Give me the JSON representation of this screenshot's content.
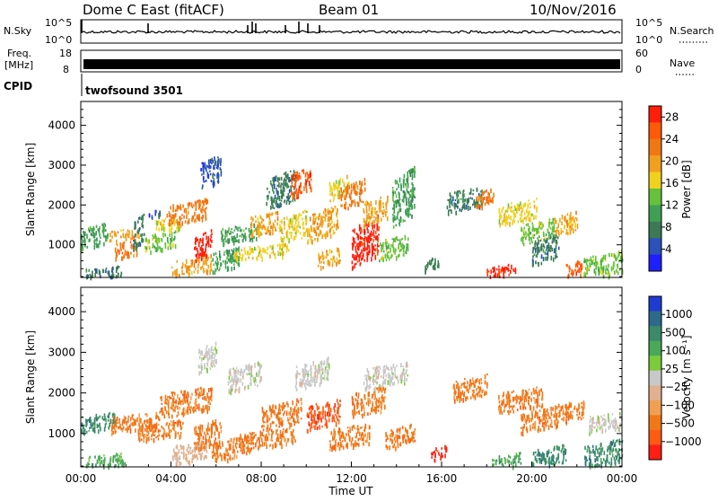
{
  "header": {
    "station": "Dome C East (fitACF)",
    "beam": "Beam 01",
    "date": "10/Nov/2016"
  },
  "strips": {
    "nsky_label": "N.Sky",
    "nsky_ticks": [
      "10^5",
      "10^0"
    ],
    "nsearch_label": "N.Search",
    "nsearch_ticks": [
      "10^5",
      "10^0"
    ],
    "freq_label_1": "Freq.",
    "freq_label_2": "[MHz]",
    "freq_ticks": [
      "18",
      "8"
    ],
    "nave_label": "Nave",
    "nave_ticks": [
      "60",
      "0"
    ],
    "cpid_label": "CPID",
    "cpid_value": "twofsound 3501"
  },
  "colors": {
    "power": [
      "#1e1eff",
      "#2a52b8",
      "#3b7a55",
      "#3fa055",
      "#66c23a",
      "#f0d21e",
      "#f0a01e",
      "#f07814",
      "#ff5a0a",
      "#ff1e0a"
    ],
    "velocity": [
      "#1e3cd0",
      "#2d6a8a",
      "#3b8a6a",
      "#4aa858",
      "#7acc3a",
      "#c8c8c8",
      "#e0b090",
      "#f0a050",
      "#f07818",
      "#ff5a14",
      "#ff1e14"
    ]
  },
  "chart_data": [
    {
      "type": "heatmap",
      "title": "Power",
      "ylabel": "Slant Range [km]",
      "xlabel": "",
      "x_ticks": [],
      "y_ticks": [
        "1000",
        "2000",
        "3000",
        "4000"
      ],
      "ylim": [
        180,
        4600
      ],
      "x_range_hours": [
        0,
        24
      ],
      "colorbar_label": "Power [dB]",
      "colorbar_ticks": [
        "4",
        "8",
        "12",
        "16",
        "20",
        "24",
        "28"
      ],
      "colorbar_range": [
        0,
        30
      ],
      "grid": false,
      "blobs": [
        {
          "h": [
            0.0,
            1.2
          ],
          "r": [
            1000,
            1500
          ],
          "c": 3
        },
        {
          "h": [
            0.2,
            1.8
          ],
          "r": [
            180,
            450
          ],
          "c": 2
        },
        {
          "h": [
            1.2,
            2.6
          ],
          "r": [
            1150,
            1400
          ],
          "c": 6
        },
        {
          "h": [
            1.5,
            2.5
          ],
          "r": [
            700,
            1100
          ],
          "c": 7
        },
        {
          "h": [
            2.3,
            2.8
          ],
          "r": [
            1000,
            1700
          ],
          "c": 2
        },
        {
          "h": [
            2.8,
            4.2
          ],
          "r": [
            900,
            1300
          ],
          "c": 4
        },
        {
          "h": [
            3.0,
            3.5
          ],
          "r": [
            1700,
            1900
          ],
          "c": 1
        },
        {
          "h": [
            3.3,
            4.5
          ],
          "r": [
            1400,
            1700
          ],
          "c": 5
        },
        {
          "h": [
            3.8,
            5.6
          ],
          "r": [
            1600,
            2100
          ],
          "c": 7
        },
        {
          "h": [
            4.0,
            5.8
          ],
          "r": [
            300,
            700
          ],
          "c": 6
        },
        {
          "h": [
            5.0,
            5.8
          ],
          "r": [
            700,
            1300
          ],
          "c": 9
        },
        {
          "h": [
            5.3,
            6.2
          ],
          "r": [
            2500,
            3200
          ],
          "c": 1
        },
        {
          "h": [
            5.8,
            7.0
          ],
          "r": [
            400,
            900
          ],
          "c": 3
        },
        {
          "h": [
            6.2,
            7.8
          ],
          "r": [
            1100,
            1500
          ],
          "c": 3
        },
        {
          "h": [
            6.8,
            9.2
          ],
          "r": [
            700,
            1000
          ],
          "c": 5
        },
        {
          "h": [
            7.5,
            8.8
          ],
          "r": [
            1300,
            1800
          ],
          "c": 6
        },
        {
          "h": [
            8.2,
            9.5
          ],
          "r": [
            2000,
            2800
          ],
          "c": 2
        },
        {
          "h": [
            8.8,
            10.0
          ],
          "r": [
            1100,
            1800
          ],
          "c": 5
        },
        {
          "h": [
            9.3,
            10.2
          ],
          "r": [
            2300,
            2900
          ],
          "c": 8
        },
        {
          "h": [
            10.0,
            11.4
          ],
          "r": [
            1200,
            1900
          ],
          "c": 6
        },
        {
          "h": [
            10.5,
            11.5
          ],
          "r": [
            500,
            900
          ],
          "c": 6
        },
        {
          "h": [
            11.0,
            11.9
          ],
          "r": [
            2200,
            2700
          ],
          "c": 5
        },
        {
          "h": [
            11.5,
            12.6
          ],
          "r": [
            2000,
            2600
          ],
          "c": 7
        },
        {
          "h": [
            12.0,
            13.2
          ],
          "r": [
            600,
            1600
          ],
          "c": 9
        },
        {
          "h": [
            12.5,
            13.6
          ],
          "r": [
            1600,
            2200
          ],
          "c": 6
        },
        {
          "h": [
            13.2,
            14.5
          ],
          "r": [
            700,
            1200
          ],
          "c": 4
        },
        {
          "h": [
            13.8,
            14.8
          ],
          "r": [
            1600,
            2800
          ],
          "c": 3
        },
        {
          "h": [
            15.2,
            15.9
          ],
          "r": [
            400,
            700
          ],
          "c": 2
        },
        {
          "h": [
            16.2,
            17.8
          ],
          "r": [
            1900,
            2400
          ],
          "c": 2
        },
        {
          "h": [
            17.5,
            18.3
          ],
          "r": [
            2000,
            2400
          ],
          "c": 7
        },
        {
          "h": [
            18.0,
            19.3
          ],
          "r": [
            180,
            500
          ],
          "c": 9
        },
        {
          "h": [
            18.5,
            20.2
          ],
          "r": [
            1600,
            2100
          ],
          "c": 5
        },
        {
          "h": [
            19.5,
            21.0
          ],
          "r": [
            1100,
            1600
          ],
          "c": 4
        },
        {
          "h": [
            20.0,
            21.2
          ],
          "r": [
            600,
            1200
          ],
          "c": 2
        },
        {
          "h": [
            21.0,
            22.0
          ],
          "r": [
            1300,
            1800
          ],
          "c": 6
        },
        {
          "h": [
            21.5,
            22.2
          ],
          "r": [
            200,
            600
          ],
          "c": 8
        },
        {
          "h": [
            22.3,
            24.0
          ],
          "r": [
            200,
            800
          ],
          "c": 4
        }
      ]
    },
    {
      "type": "heatmap",
      "title": "Velocity",
      "ylabel": "Slant Range [km]",
      "xlabel": "Time UT",
      "x_ticks": [
        "00:00",
        "04:00",
        "08:00",
        "12:00",
        "16:00",
        "20:00",
        "00:00"
      ],
      "y_ticks": [
        "1000",
        "2000",
        "3000",
        "4000"
      ],
      "ylim": [
        180,
        4600
      ],
      "x_range_hours": [
        0,
        24
      ],
      "colorbar_label": "Velocity [m s⁻¹]",
      "colorbar_ticks": [
        "1000",
        "500",
        "100",
        "25",
        "−25",
        "−100",
        "−500",
        "−1000"
      ],
      "colorbar_range": [
        -1200,
        1200
      ],
      "grid": false,
      "blobs": [
        {
          "h": [
            0.0,
            1.5
          ],
          "r": [
            1100,
            1500
          ],
          "c": 2
        },
        {
          "h": [
            0.2,
            2.0
          ],
          "r": [
            180,
            500
          ],
          "c": 3
        },
        {
          "h": [
            1.3,
            3.5
          ],
          "r": [
            1100,
            1500
          ],
          "c": 8
        },
        {
          "h": [
            2.5,
            4.5
          ],
          "r": [
            900,
            1300
          ],
          "c": 8
        },
        {
          "h": [
            3.5,
            5.8
          ],
          "r": [
            1500,
            2100
          ],
          "c": 8
        },
        {
          "h": [
            4.0,
            5.6
          ],
          "r": [
            300,
            800
          ],
          "c": 6
        },
        {
          "h": [
            5.0,
            6.2
          ],
          "r": [
            700,
            1300
          ],
          "c": 8
        },
        {
          "h": [
            5.2,
            6.0
          ],
          "r": [
            2600,
            3200
          ],
          "c": 5
        },
        {
          "h": [
            5.8,
            7.5
          ],
          "r": [
            400,
            900
          ],
          "c": 8
        },
        {
          "h": [
            6.5,
            8.0
          ],
          "r": [
            2100,
            2700
          ],
          "c": 5
        },
        {
          "h": [
            7.0,
            9.5
          ],
          "r": [
            700,
            1100
          ],
          "c": 8
        },
        {
          "h": [
            8.0,
            9.8
          ],
          "r": [
            1200,
            1800
          ],
          "c": 8
        },
        {
          "h": [
            9.5,
            11.0
          ],
          "r": [
            2200,
            2800
          ],
          "c": 5
        },
        {
          "h": [
            10.0,
            11.5
          ],
          "r": [
            1200,
            1800
          ],
          "c": 9
        },
        {
          "h": [
            11.0,
            12.8
          ],
          "r": [
            700,
            1200
          ],
          "c": 8
        },
        {
          "h": [
            12.0,
            13.5
          ],
          "r": [
            1500,
            2100
          ],
          "c": 8
        },
        {
          "h": [
            12.5,
            14.5
          ],
          "r": [
            2200,
            2700
          ],
          "c": 5
        },
        {
          "h": [
            13.5,
            14.8
          ],
          "r": [
            700,
            1200
          ],
          "c": 8
        },
        {
          "h": [
            15.5,
            16.2
          ],
          "r": [
            400,
            700
          ],
          "c": 10
        },
        {
          "h": [
            16.5,
            18.0
          ],
          "r": [
            1900,
            2400
          ],
          "c": 8
        },
        {
          "h": [
            18.2,
            19.5
          ],
          "r": [
            200,
            500
          ],
          "c": 3
        },
        {
          "h": [
            18.5,
            20.5
          ],
          "r": [
            1600,
            2100
          ],
          "c": 8
        },
        {
          "h": [
            19.5,
            21.0
          ],
          "r": [
            1100,
            1600
          ],
          "c": 8
        },
        {
          "h": [
            20.0,
            21.5
          ],
          "r": [
            200,
            700
          ],
          "c": 2
        },
        {
          "h": [
            21.0,
            22.3
          ],
          "r": [
            1300,
            1800
          ],
          "c": 8
        },
        {
          "h": [
            22.3,
            24.0
          ],
          "r": [
            200,
            800
          ],
          "c": 2
        },
        {
          "h": [
            22.5,
            24.0
          ],
          "r": [
            1100,
            1500
          ],
          "c": 5
        }
      ]
    }
  ]
}
